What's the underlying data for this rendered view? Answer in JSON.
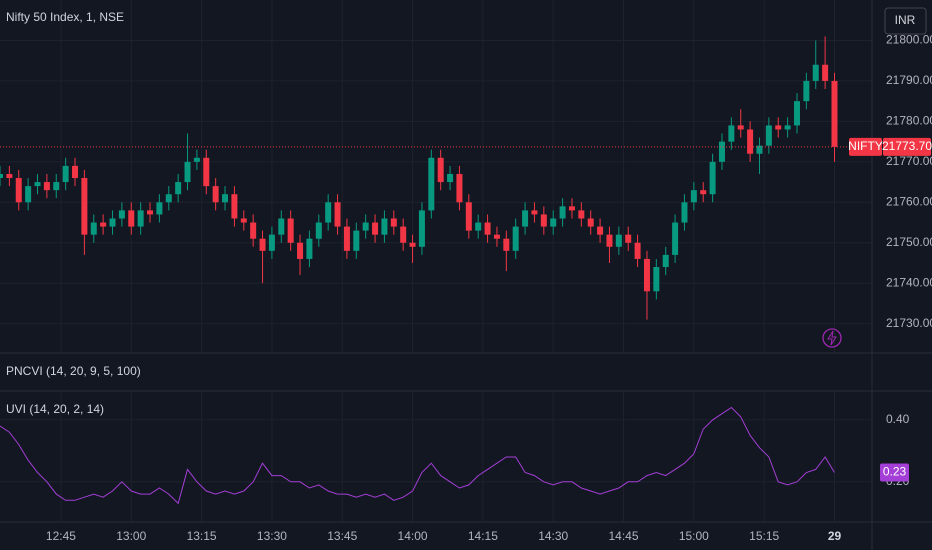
{
  "chart_data": [
    {
      "type": "candlestick",
      "title": "Nifty 50 Index, 1, NSE",
      "currency": "INR",
      "symbol": "NIFTY",
      "up_color": "#089981",
      "down_color": "#f23645",
      "x": [
        "12:32",
        "12:34",
        "12:36",
        "12:38",
        "12:40",
        "12:42",
        "12:44",
        "12:46",
        "12:48",
        "12:50",
        "12:52",
        "12:54",
        "12:56",
        "12:58",
        "13:00",
        "13:02",
        "13:04",
        "13:06",
        "13:08",
        "13:10",
        "13:12",
        "13:14",
        "13:16",
        "13:18",
        "13:20",
        "13:22",
        "13:24",
        "13:26",
        "13:28",
        "13:30",
        "13:32",
        "13:34",
        "13:36",
        "13:38",
        "13:40",
        "13:42",
        "13:44",
        "13:46",
        "13:48",
        "13:50",
        "13:52",
        "13:54",
        "13:56",
        "13:58",
        "14:00",
        "14:02",
        "14:04",
        "14:06",
        "14:08",
        "14:10",
        "14:12",
        "14:14",
        "14:16",
        "14:18",
        "14:20",
        "14:22",
        "14:24",
        "14:26",
        "14:28",
        "14:30",
        "14:32",
        "14:34",
        "14:36",
        "14:38",
        "14:40",
        "14:42",
        "14:44",
        "14:46",
        "14:48",
        "14:50",
        "14:52",
        "14:54",
        "14:56",
        "14:58",
        "15:00",
        "15:02",
        "15:04",
        "15:06",
        "15:08",
        "15:10",
        "15:12",
        "15:14",
        "15:16",
        "15:18",
        "15:20",
        "15:22",
        "15:24",
        "15:26",
        "15:28",
        "15:30"
      ],
      "open": [
        21766,
        21767,
        21766,
        21760,
        21764,
        21765,
        21763,
        21765,
        21769,
        21766,
        21752,
        21755,
        21754,
        21756,
        21758,
        21754,
        21758,
        21757,
        21760,
        21762,
        21765,
        21770,
        21771,
        21764,
        21760,
        21762,
        21756,
        21755,
        21751,
        21748,
        21752,
        21756,
        21750,
        21746,
        21751,
        21755,
        21760,
        21754,
        21748,
        21753,
        21755,
        21752,
        21756,
        21754,
        21750,
        21749,
        21758,
        21771,
        21765,
        21767,
        21760,
        21753,
        21755,
        21752,
        21751,
        21748,
        21754,
        21758,
        21757,
        21754,
        21756,
        21759,
        21758,
        21756,
        21754,
        21752,
        21749,
        21752,
        21750,
        21746,
        21738,
        21744,
        21747,
        21755,
        21760,
        21763,
        21762,
        21770,
        21775,
        21779,
        21778,
        21772,
        21774,
        21779,
        21778,
        21779,
        21785,
        21790,
        21794,
        21790
      ],
      "high": [
        21769,
        21769,
        21768,
        21766,
        21767,
        21767,
        21767,
        21771,
        21771,
        21768,
        21757,
        21757,
        21758,
        21760,
        21760,
        21760,
        21760,
        21762,
        21764,
        21767,
        21777,
        21773,
        21773,
        21766,
        21764,
        21764,
        21758,
        21757,
        21753,
        21754,
        21758,
        21758,
        21752,
        21753,
        21757,
        21762,
        21762,
        21756,
        21755,
        21757,
        21757,
        21758,
        21758,
        21756,
        21752,
        21760,
        21773,
        21773,
        21769,
        21769,
        21762,
        21757,
        21757,
        21754,
        21753,
        21756,
        21760,
        21760,
        21759,
        21758,
        21761,
        21761,
        21760,
        21758,
        21756,
        21754,
        21754,
        21754,
        21752,
        21748,
        21746,
        21749,
        21757,
        21762,
        21765,
        21765,
        21772,
        21777,
        21781,
        21783,
        21780,
        21776,
        21781,
        21781,
        21781,
        21787,
        21792,
        21800,
        21801,
        21792
      ],
      "low": [
        21764,
        21764,
        21758,
        21758,
        21762,
        21761,
        21761,
        21763,
        21764,
        21747,
        21750,
        21752,
        21752,
        21754,
        21752,
        21752,
        21755,
        21755,
        21758,
        21760,
        21763,
        21768,
        21762,
        21758,
        21758,
        21754,
        21753,
        21749,
        21740,
        21746,
        21750,
        21748,
        21742,
        21744,
        21749,
        21753,
        21752,
        21746,
        21746,
        21751,
        21750,
        21750,
        21752,
        21748,
        21745,
        21747,
        21756,
        21763,
        21763,
        21758,
        21751,
        21751,
        21750,
        21749,
        21743,
        21746,
        21752,
        21755,
        21752,
        21752,
        21754,
        21756,
        21754,
        21752,
        21750,
        21745,
        21747,
        21748,
        21744,
        21731,
        21736,
        21742,
        21745,
        21753,
        21758,
        21760,
        21760,
        21768,
        21773,
        21776,
        21770,
        21767,
        21772,
        21776,
        21776,
        21777,
        21783,
        21788,
        21788,
        21770
      ],
      "close": [
        21767,
        21766,
        21760,
        21764,
        21765,
        21763,
        21765,
        21769,
        21766,
        21752,
        21755,
        21754,
        21756,
        21758,
        21754,
        21758,
        21757,
        21760,
        21762,
        21765,
        21770,
        21771,
        21764,
        21760,
        21762,
        21756,
        21755,
        21751,
        21748,
        21752,
        21756,
        21750,
        21746,
        21751,
        21755,
        21760,
        21754,
        21748,
        21753,
        21755,
        21752,
        21756,
        21754,
        21750,
        21749,
        21758,
        21771,
        21765,
        21767,
        21760,
        21753,
        21755,
        21752,
        21751,
        21748,
        21754,
        21758,
        21757,
        21754,
        21756,
        21759,
        21758,
        21756,
        21754,
        21752,
        21749,
        21752,
        21750,
        21746,
        21738,
        21744,
        21747,
        21755,
        21760,
        21763,
        21762,
        21770,
        21775,
        21779,
        21778,
        21772,
        21774,
        21779,
        21778,
        21779,
        21785,
        21790,
        21794,
        21790,
        21773.7
      ],
      "last_price": {
        "value": 21773.7,
        "label": "21773.70"
      },
      "xlim": [
        "12:32",
        "15:38"
      ],
      "xticks": [
        "12:45",
        "13:00",
        "13:15",
        "13:30",
        "13:45",
        "14:00",
        "14:15",
        "14:30",
        "14:45",
        "15:00",
        "15:15",
        {
          "value": "15:30",
          "label": "29"
        }
      ],
      "ylim": [
        21723,
        21810
      ],
      "yticks": [
        {
          "value": 21730,
          "label": "21730.00"
        },
        {
          "value": 21740,
          "label": "21740.00"
        },
        {
          "value": 21750,
          "label": "21750.00"
        },
        {
          "value": 21760,
          "label": "21760.00"
        },
        {
          "value": 21770,
          "label": "21770.00"
        },
        {
          "value": 21780,
          "label": "21780.00"
        },
        {
          "value": 21790,
          "label": "21790.00"
        },
        {
          "value": 21800,
          "label": "21800.00"
        }
      ],
      "grid": true
    },
    {
      "type": "indicator",
      "title": "PNCVI (14, 20, 9, 5, 100)"
    },
    {
      "type": "line",
      "title": "UVI (14, 20, 2, 14)",
      "color": "#a33ed6",
      "values": [
        0.38,
        0.36,
        0.32,
        0.27,
        0.23,
        0.2,
        0.16,
        0.14,
        0.14,
        0.15,
        0.16,
        0.15,
        0.17,
        0.2,
        0.17,
        0.16,
        0.16,
        0.18,
        0.16,
        0.13,
        0.24,
        0.2,
        0.17,
        0.16,
        0.17,
        0.16,
        0.17,
        0.2,
        0.26,
        0.22,
        0.22,
        0.2,
        0.2,
        0.18,
        0.19,
        0.17,
        0.16,
        0.16,
        0.15,
        0.16,
        0.15,
        0.16,
        0.14,
        0.15,
        0.17,
        0.23,
        0.26,
        0.22,
        0.2,
        0.18,
        0.19,
        0.22,
        0.24,
        0.26,
        0.28,
        0.28,
        0.23,
        0.22,
        0.2,
        0.19,
        0.2,
        0.2,
        0.18,
        0.17,
        0.16,
        0.17,
        0.18,
        0.2,
        0.2,
        0.22,
        0.23,
        0.22,
        0.24,
        0.26,
        0.29,
        0.37,
        0.4,
        0.42,
        0.44,
        0.41,
        0.35,
        0.31,
        0.28,
        0.2,
        0.19,
        0.2,
        0.23,
        0.24,
        0.28,
        0.23
      ],
      "ylim": [
        0.07,
        0.49
      ],
      "yticks": [
        {
          "value": 0.4,
          "label": "0.40"
        },
        {
          "value": 0.2,
          "label": "0.20"
        }
      ],
      "grid": true
    }
  ]
}
